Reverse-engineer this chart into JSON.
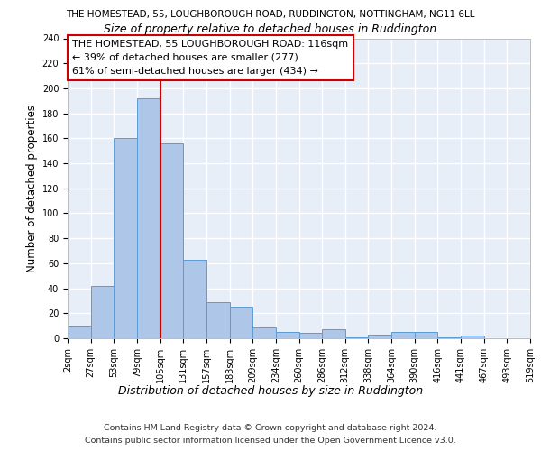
{
  "title_line1": "THE HOMESTEAD, 55, LOUGHBOROUGH ROAD, RUDDINGTON, NOTTINGHAM, NG11 6LL",
  "title_line2": "Size of property relative to detached houses in Ruddington",
  "xlabel": "Distribution of detached houses by size in Ruddington",
  "ylabel": "Number of detached properties",
  "bar_values": [
    10,
    42,
    160,
    192,
    156,
    63,
    29,
    25,
    9,
    5,
    4,
    7,
    1,
    3,
    5,
    5,
    1,
    2
  ],
  "tick_labels": [
    "2sqm",
    "27sqm",
    "53sqm",
    "79sqm",
    "105sqm",
    "131sqm",
    "157sqm",
    "183sqm",
    "209sqm",
    "234sqm",
    "260sqm",
    "286sqm",
    "312sqm",
    "338sqm",
    "364sqm",
    "390sqm",
    "416sqm",
    "441sqm",
    "467sqm",
    "493sqm",
    "519sqm"
  ],
  "bar_color": "#aec6e8",
  "bar_edge_color": "#5b9bd5",
  "ylim": [
    0,
    240
  ],
  "yticks": [
    0,
    20,
    40,
    60,
    80,
    100,
    120,
    140,
    160,
    180,
    200,
    220,
    240
  ],
  "property_label": "THE HOMESTEAD, 55 LOUGHBOROUGH ROAD: 116sqm",
  "annotation_line1": "← 39% of detached houses are smaller (277)",
  "annotation_line2": "61% of semi-detached houses are larger (434) →",
  "vline_x": 4.0,
  "annotation_box_color": "#ffffff",
  "annotation_border_color": "#cc0000",
  "footer_line1": "Contains HM Land Registry data © Crown copyright and database right 2024.",
  "footer_line2": "Contains public sector information licensed under the Open Government Licence v3.0.",
  "background_color": "#e8eef8",
  "grid_color": "#ffffff",
  "title_fontsize": 7.5,
  "subtitle_fontsize": 9.0,
  "ylabel_fontsize": 8.5,
  "xlabel_fontsize": 9.0,
  "tick_fontsize": 7.0,
  "annot_fontsize": 8.0,
  "footer_fontsize": 6.8
}
